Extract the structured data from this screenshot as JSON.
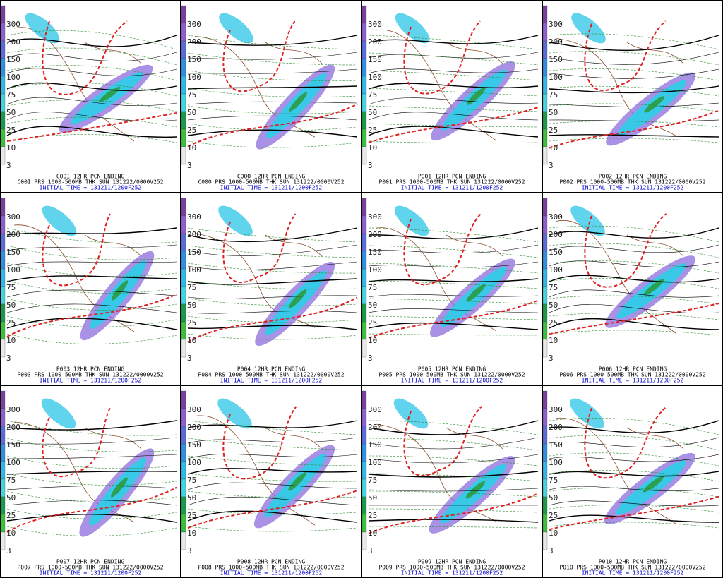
{
  "colorbar": {
    "levels": [
      300,
      200,
      150,
      100,
      75,
      50,
      25,
      10,
      3
    ]
  },
  "panels": [
    {
      "caption": "C00I 12HR PCN ENDING",
      "description": "C00I PRS 1000-500MB THK SUN 131222/0000V252",
      "initial_time": "INITIAL TIME = 131211/1200F252"
    },
    {
      "caption": "C00O 12HR PCN ENDING",
      "description": "C00O PRS 1000-500MB THK SUN 131222/0000V252",
      "initial_time": "INITIAL TIME = 131211/1200F252"
    },
    {
      "caption": "P001 12HR PCN ENDING",
      "description": "P001 PRS 1000-500MB THK SUN 131222/0000V252",
      "initial_time": "INITIAL TIME = 131211/1200F252"
    },
    {
      "caption": "P002 12HR PCN ENDING",
      "description": "P002 PRS 1000-500MB THK SUN 131222/0000V252",
      "initial_time": "INITIAL TIME = 131211/1200F252"
    },
    {
      "caption": "P003 12HR PCN ENDING",
      "description": "P003 PRS 1000-500MB THK SUN 131222/0000V252",
      "initial_time": "INITIAL TIME = 131211/1200F252"
    },
    {
      "caption": "P004 12HR PCN ENDING",
      "description": "P004 PRS 1000-500MB THK SUN 131222/0000V252",
      "initial_time": "INITIAL TIME = 131211/1200F252"
    },
    {
      "caption": "P005 12HR PCN ENDING",
      "description": "P005 PRS 1000-500MB THK SUN 131222/0000V252",
      "initial_time": "INITIAL TIME = 131211/1200F252"
    },
    {
      "caption": "P006 12HR PCN ENDING",
      "description": "P006 PRS 1000-500MB THK SUN 131222/0000V252",
      "initial_time": "INITIAL TIME = 131211/1200F252"
    },
    {
      "caption": "P007 12HR PCN ENDING",
      "description": "P007 PRS 1000-500MB THK SUN 131222/0000V252",
      "initial_time": "INITIAL TIME = 131211/1200F252"
    },
    {
      "caption": "P008 12HR PCN ENDING",
      "description": "P008 PRS 1000-500MB THK SUN 131222/0000V252",
      "initial_time": "INITIAL TIME = 131211/1200F252"
    },
    {
      "caption": "P009 12HR PCN ENDING",
      "description": "P009 PRS 1000-500MB THK SUN 131222/0000V252",
      "initial_time": "INITIAL TIME = 131211/1200F252"
    },
    {
      "caption": "P010 12HR PCN ENDING",
      "description": "P010 PRS 1000-500MB THK SUN 131222/0000V252",
      "initial_time": "INITIAL TIME = 131211/1200F252"
    }
  ]
}
